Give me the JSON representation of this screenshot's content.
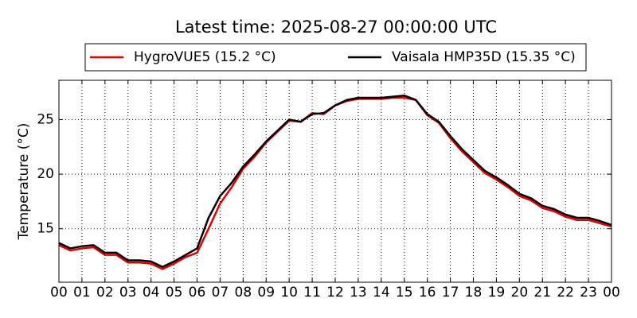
{
  "chart_data": {
    "type": "line",
    "title": "Latest time: 2025-08-27 00:00:00 UTC",
    "ylabel": "Temperature (°C)",
    "x": [
      0,
      0.5,
      1,
      1.5,
      2,
      2.5,
      3,
      3.5,
      4,
      4.5,
      5,
      5.5,
      6,
      6.5,
      7,
      7.5,
      8,
      8.5,
      9,
      9.5,
      10,
      10.5,
      11,
      11.5,
      12,
      12.5,
      13,
      13.5,
      14,
      14.5,
      15,
      15.5,
      16,
      16.5,
      17,
      17.5,
      18,
      18.5,
      19,
      19.5,
      20,
      20.5,
      21,
      21.5,
      22,
      22.5,
      23,
      23.5,
      24
    ],
    "series": [
      {
        "name": "HygroVUE5 (15.2 °C)",
        "color": "#e00000",
        "values": [
          13.5,
          13.0,
          13.2,
          13.3,
          12.6,
          12.6,
          11.9,
          11.9,
          11.8,
          11.3,
          11.8,
          12.4,
          12.8,
          15.0,
          17.3,
          18.8,
          20.5,
          21.6,
          22.9,
          23.9,
          24.9,
          24.8,
          25.6,
          25.5,
          26.3,
          26.7,
          26.9,
          26.9,
          26.9,
          27.0,
          27.0,
          26.8,
          25.4,
          24.7,
          23.3,
          22.1,
          21.1,
          20.1,
          19.5,
          18.8,
          18.0,
          17.6,
          16.9,
          16.6,
          16.1,
          15.8,
          15.8,
          15.5,
          15.2
        ]
      },
      {
        "name": "Vaisala HMP35D (15.35 °C)",
        "color": "#000000",
        "values": [
          13.7,
          13.2,
          13.4,
          13.5,
          12.8,
          12.8,
          12.1,
          12.1,
          12.0,
          11.5,
          12.0,
          12.6,
          13.2,
          16.0,
          18.0,
          19.2,
          20.7,
          21.8,
          23.0,
          24.0,
          25.0,
          24.8,
          25.5,
          25.6,
          26.3,
          26.8,
          27.0,
          27.0,
          27.0,
          27.1,
          27.2,
          26.8,
          25.5,
          24.8,
          23.5,
          22.3,
          21.3,
          20.3,
          19.7,
          19.0,
          18.2,
          17.8,
          17.1,
          16.8,
          16.3,
          16.0,
          16.0,
          15.7,
          15.35
        ]
      }
    ],
    "xlim": [
      0,
      24
    ],
    "xticks": [
      {
        "value": 0,
        "label": "00"
      },
      {
        "value": 1,
        "label": "01"
      },
      {
        "value": 2,
        "label": "02"
      },
      {
        "value": 3,
        "label": "03"
      },
      {
        "value": 4,
        "label": "04"
      },
      {
        "value": 5,
        "label": "05"
      },
      {
        "value": 6,
        "label": "06"
      },
      {
        "value": 7,
        "label": "07"
      },
      {
        "value": 8,
        "label": "08"
      },
      {
        "value": 9,
        "label": "09"
      },
      {
        "value": 10,
        "label": "10"
      },
      {
        "value": 11,
        "label": "11"
      },
      {
        "value": 12,
        "label": "12"
      },
      {
        "value": 13,
        "label": "13"
      },
      {
        "value": 14,
        "label": "14"
      },
      {
        "value": 15,
        "label": "15"
      },
      {
        "value": 16,
        "label": "16"
      },
      {
        "value": 17,
        "label": "17"
      },
      {
        "value": 18,
        "label": "18"
      },
      {
        "value": 19,
        "label": "19"
      },
      {
        "value": 20,
        "label": "20"
      },
      {
        "value": 21,
        "label": "21"
      },
      {
        "value": 22,
        "label": "22"
      },
      {
        "value": 23,
        "label": "23"
      },
      {
        "value": 24,
        "label": "00"
      }
    ],
    "ylim": [
      10.1,
      28.6
    ],
    "yticks": [
      15,
      20,
      25
    ],
    "grid": true,
    "legend": "top"
  }
}
